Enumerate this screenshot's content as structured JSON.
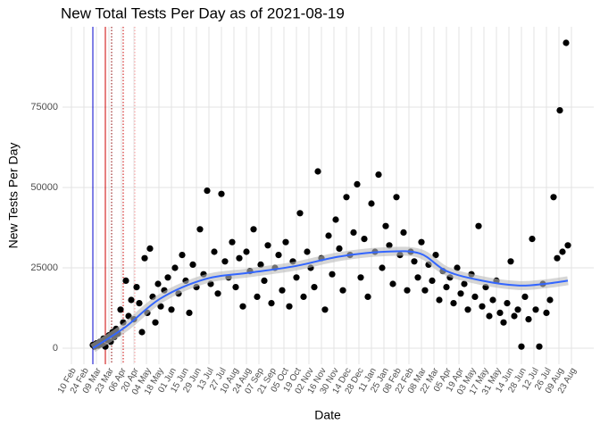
{
  "chart_data": {
    "type": "scatter",
    "title": "New Total Tests Per Day as of 2021-08-19",
    "xlabel": "Date",
    "ylabel": "New Tests Per Day",
    "xlim": [
      -10,
      585
    ],
    "ylim": [
      -5000,
      100000
    ],
    "yticks": [
      {
        "value": 0,
        "label": "0"
      },
      {
        "value": 25000,
        "label": "25000"
      },
      {
        "value": 50000,
        "label": "50000"
      },
      {
        "value": 75000,
        "label": "75000"
      }
    ],
    "xticks": [
      {
        "value": 0,
        "label": "10 Feb"
      },
      {
        "value": 14,
        "label": "24 Feb"
      },
      {
        "value": 28,
        "label": "09 Mar"
      },
      {
        "value": 42,
        "label": "23 Mar"
      },
      {
        "value": 56,
        "label": "06 Apr"
      },
      {
        "value": 70,
        "label": "20 Apr"
      },
      {
        "value": 84,
        "label": "04 May"
      },
      {
        "value": 98,
        "label": "18 May"
      },
      {
        "value": 112,
        "label": "01 Jun"
      },
      {
        "value": 126,
        "label": "15 Jun"
      },
      {
        "value": 140,
        "label": "29 Jun"
      },
      {
        "value": 154,
        "label": "13 Jul"
      },
      {
        "value": 168,
        "label": "27 Jul"
      },
      {
        "value": 182,
        "label": "10 Aug"
      },
      {
        "value": 196,
        "label": "24 Aug"
      },
      {
        "value": 210,
        "label": "07 Sep"
      },
      {
        "value": 224,
        "label": "21 Sep"
      },
      {
        "value": 238,
        "label": "05 Oct"
      },
      {
        "value": 252,
        "label": "19 Oct"
      },
      {
        "value": 266,
        "label": "02 Nov"
      },
      {
        "value": 280,
        "label": "16 Nov"
      },
      {
        "value": 294,
        "label": "30 Nov"
      },
      {
        "value": 308,
        "label": "14 Dec"
      },
      {
        "value": 322,
        "label": "28 Dec"
      },
      {
        "value": 336,
        "label": "11 Jan"
      },
      {
        "value": 350,
        "label": "25 Jan"
      },
      {
        "value": 364,
        "label": "08 Feb"
      },
      {
        "value": 378,
        "label": "22 Feb"
      },
      {
        "value": 392,
        "label": "08 Mar"
      },
      {
        "value": 406,
        "label": "22 Mar"
      },
      {
        "value": 420,
        "label": "05 Apr"
      },
      {
        "value": 434,
        "label": "19 Apr"
      },
      {
        "value": 448,
        "label": "03 May"
      },
      {
        "value": 462,
        "label": "17 May"
      },
      {
        "value": 476,
        "label": "31 May"
      },
      {
        "value": 490,
        "label": "14 Jun"
      },
      {
        "value": 504,
        "label": "28 Jun"
      },
      {
        "value": 518,
        "label": "12 Jul"
      },
      {
        "value": 532,
        "label": "26 Jul"
      },
      {
        "value": 546,
        "label": "09 Aug"
      },
      {
        "value": 560,
        "label": "23 Aug"
      }
    ],
    "grid": true,
    "color": "#000000",
    "x": [
      24,
      26,
      28,
      30,
      32,
      34,
      36,
      38,
      40,
      42,
      44,
      46,
      48,
      50,
      52,
      55,
      58,
      61,
      64,
      67,
      70,
      73,
      76,
      79,
      82,
      85,
      88,
      91,
      94,
      97,
      100,
      104,
      108,
      112,
      116,
      120,
      124,
      128,
      132,
      136,
      140,
      144,
      148,
      152,
      156,
      160,
      164,
      168,
      172,
      176,
      180,
      184,
      188,
      192,
      196,
      200,
      204,
      208,
      212,
      216,
      220,
      224,
      228,
      232,
      236,
      240,
      244,
      248,
      252,
      256,
      260,
      264,
      268,
      272,
      276,
      280,
      284,
      288,
      292,
      296,
      300,
      304,
      308,
      312,
      316,
      320,
      324,
      328,
      332,
      336,
      340,
      344,
      348,
      352,
      356,
      360,
      364,
      368,
      372,
      376,
      380,
      384,
      388,
      392,
      396,
      400,
      404,
      408,
      412,
      416,
      420,
      424,
      428,
      432,
      436,
      440,
      444,
      448,
      452,
      456,
      460,
      464,
      468,
      472,
      476,
      480,
      484,
      488,
      492,
      496,
      500,
      504,
      508,
      512,
      516,
      520,
      524,
      528,
      532,
      536,
      540,
      544,
      547,
      550,
      554,
      556
    ],
    "values": [
      1000,
      500,
      1500,
      800,
      2000,
      1200,
      3000,
      500,
      2500,
      4000,
      2000,
      5000,
      3500,
      6000,
      4500,
      12000,
      8000,
      21000,
      10000,
      15000,
      9000,
      19000,
      14000,
      5000,
      28000,
      11000,
      31000,
      16000,
      8000,
      20000,
      13000,
      18000,
      22000,
      12000,
      25000,
      17000,
      29000,
      21000,
      11000,
      26000,
      19000,
      37000,
      23000,
      49000,
      20000,
      30000,
      17000,
      48000,
      27000,
      22000,
      33000,
      19000,
      28000,
      13000,
      30000,
      24000,
      37000,
      16000,
      26000,
      21000,
      32000,
      14000,
      25000,
      29000,
      18000,
      33000,
      13000,
      27000,
      22000,
      42000,
      16000,
      30000,
      25000,
      19000,
      55000,
      28000,
      12000,
      35000,
      23000,
      40000,
      31000,
      18000,
      47000,
      29000,
      36000,
      51000,
      22000,
      34000,
      16000,
      45000,
      30000,
      54000,
      25000,
      38000,
      32000,
      20000,
      47000,
      29000,
      36000,
      18000,
      30000,
      27000,
      22000,
      33000,
      18000,
      26000,
      21000,
      29000,
      15000,
      24000,
      19000,
      22000,
      14000,
      25000,
      17000,
      20000,
      12000,
      23000,
      16000,
      38000,
      13000,
      19000,
      10000,
      15000,
      21000,
      11000,
      8000,
      14000,
      27000,
      10000,
      12000,
      500,
      16000,
      9000,
      34000,
      12000,
      500,
      20000,
      11000,
      15000,
      47000,
      28000,
      74000,
      30000,
      95000,
      32000
    ],
    "smooth": {
      "color": "#3366ff",
      "x": [
        24,
        60,
        100,
        150,
        200,
        250,
        300,
        350,
        390,
        420,
        460,
        500,
        530,
        556
      ],
      "values": [
        0,
        6500,
        15500,
        21500,
        23500,
        25500,
        28500,
        30000,
        29500,
        24000,
        21000,
        19500,
        20000,
        21000
      ]
    },
    "vlines": [
      {
        "x": 24,
        "color": "#0000cc",
        "style": "solid"
      },
      {
        "x": 38,
        "color": "#cc0000",
        "style": "solid"
      },
      {
        "x": 45,
        "color": "#880000",
        "style": "dotted"
      },
      {
        "x": 58,
        "color": "#cc0000",
        "style": "dotted"
      },
      {
        "x": 71,
        "color": "#ff9999",
        "style": "dotted"
      }
    ]
  }
}
